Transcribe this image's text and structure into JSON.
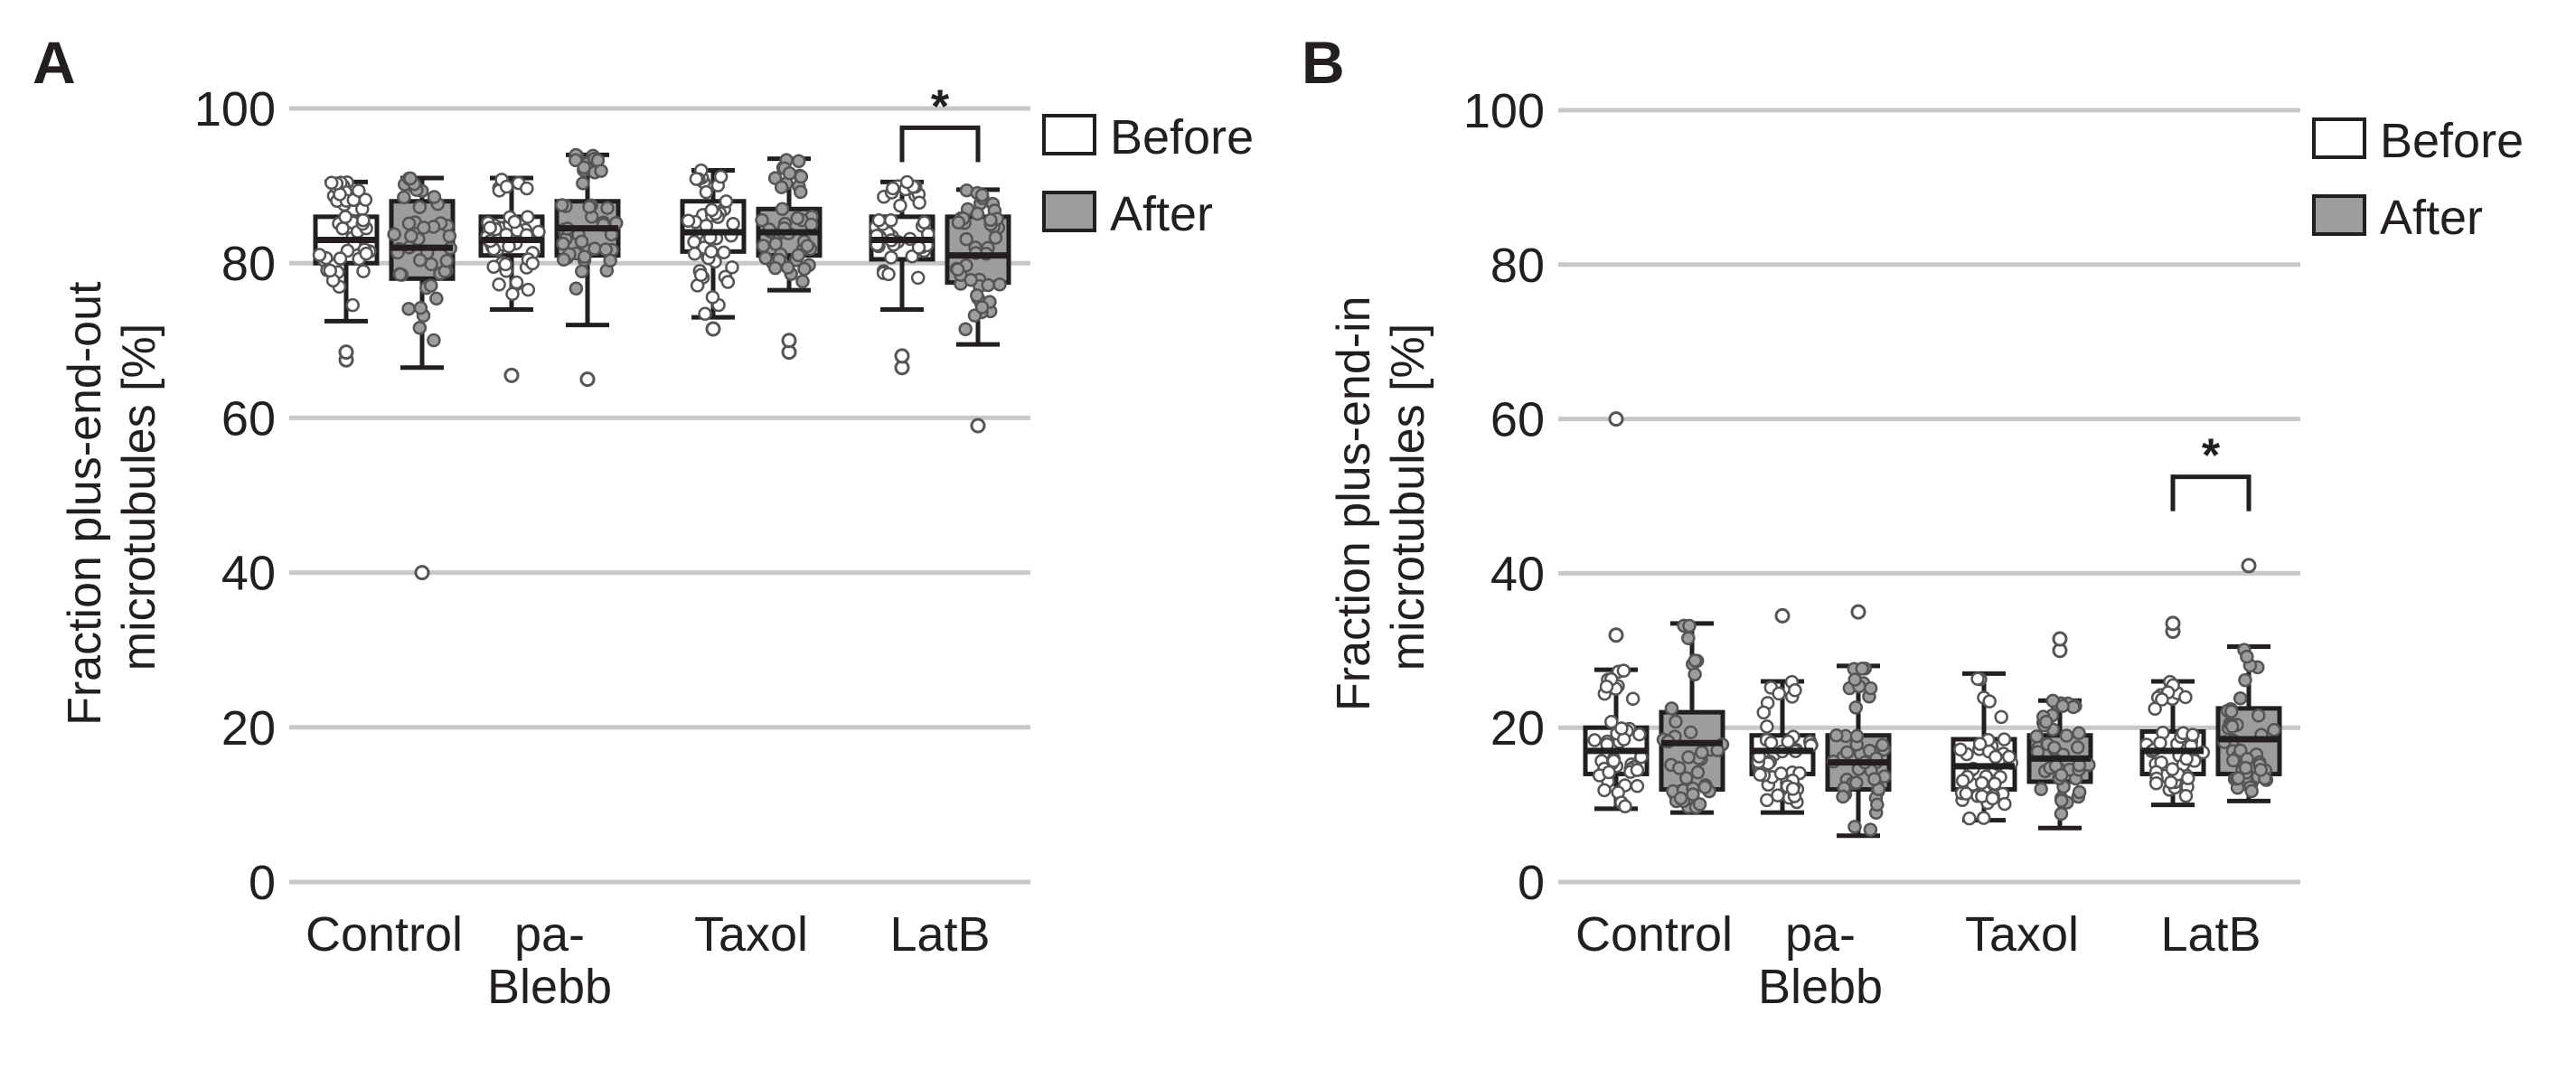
{
  "colors": {
    "grid": "#c8c8c8",
    "box_before": "#ffffff",
    "box_after": "#9d9d9d",
    "dot_before": "#ffffff",
    "dot_after": "#9d9d9d",
    "stroke": "#231f20"
  },
  "legend": {
    "before": "Before",
    "after": "After"
  },
  "chart_data": [
    {
      "panel": "A",
      "type": "box",
      "title": "",
      "ylabel_lines": [
        "Fraction plus-end-out",
        "microtubules [%]"
      ],
      "ylim": [
        0,
        100
      ],
      "yticks": [
        "0",
        "20",
        "40",
        "60",
        "80",
        "100"
      ],
      "grid": true,
      "legend_position": "top-right",
      "groups": [
        {
          "label_lines": [
            "Control"
          ],
          "before": {
            "min": 72.5,
            "q1": 80,
            "median": 83,
            "q3": 86,
            "max": 90.5,
            "outliers": [
              67.5,
              68.5
            ]
          },
          "after": {
            "min": 66.5,
            "q1": 78,
            "median": 82,
            "q3": 88,
            "max": 91,
            "outliers": [
              40
            ]
          }
        },
        {
          "label_lines": [
            "pa-",
            "Blebb"
          ],
          "before": {
            "min": 74,
            "q1": 81,
            "median": 83,
            "q3": 86,
            "max": 91,
            "outliers": [
              65.5
            ]
          },
          "after": {
            "min": 72,
            "q1": 81,
            "median": 84.5,
            "q3": 88,
            "max": 94,
            "outliers": [
              65
            ]
          }
        },
        {
          "label_lines": [
            "Taxol"
          ],
          "before": {
            "min": 73,
            "q1": 81.5,
            "median": 84,
            "q3": 88,
            "max": 92,
            "outliers": [
              71.5
            ]
          },
          "after": {
            "min": 76.5,
            "q1": 81,
            "median": 84,
            "q3": 87,
            "max": 93.5,
            "outliers": [
              68.5,
              70
            ]
          }
        },
        {
          "label_lines": [
            "LatB"
          ],
          "before": {
            "min": 74,
            "q1": 80.5,
            "median": 83,
            "q3": 86,
            "max": 90.5,
            "outliers": [
              66.5,
              68
            ]
          },
          "after": {
            "min": 69.5,
            "q1": 77.5,
            "median": 81,
            "q3": 86,
            "max": 89.5,
            "outliers": [
              59
            ]
          }
        }
      ],
      "significance": {
        "group_index": 3,
        "y": 97.5,
        "label": "*"
      }
    },
    {
      "panel": "B",
      "type": "box",
      "title": "",
      "ylabel_lines": [
        "Fraction plus-end-in",
        "microtubules [%]"
      ],
      "ylim": [
        0,
        100
      ],
      "yticks": [
        "0",
        "20",
        "40",
        "60",
        "80",
        "100"
      ],
      "grid": true,
      "legend_position": "top-right",
      "groups": [
        {
          "label_lines": [
            "Control"
          ],
          "before": {
            "min": 9.5,
            "q1": 14,
            "median": 17,
            "q3": 20,
            "max": 27.5,
            "outliers": [
              32,
              60
            ]
          },
          "after": {
            "min": 9,
            "q1": 12,
            "median": 18,
            "q3": 22,
            "max": 33.5,
            "outliers": []
          }
        },
        {
          "label_lines": [
            "pa-",
            "Blebb"
          ],
          "before": {
            "min": 9,
            "q1": 14,
            "median": 17,
            "q3": 19,
            "max": 26,
            "outliers": [
              34.5
            ]
          },
          "after": {
            "min": 6,
            "q1": 12,
            "median": 15.5,
            "q3": 19,
            "max": 28,
            "outliers": [
              35
            ]
          }
        },
        {
          "label_lines": [
            "Taxol"
          ],
          "before": {
            "min": 8,
            "q1": 12,
            "median": 15,
            "q3": 18.5,
            "max": 27,
            "outliers": []
          },
          "after": {
            "min": 7,
            "q1": 13,
            "median": 16,
            "q3": 19,
            "max": 23.5,
            "outliers": [
              30,
              31.5
            ]
          }
        },
        {
          "label_lines": [
            "LatB"
          ],
          "before": {
            "min": 10,
            "q1": 14,
            "median": 17,
            "q3": 19.5,
            "max": 26,
            "outliers": [
              32.5,
              33.5
            ]
          },
          "after": {
            "min": 10.5,
            "q1": 14,
            "median": 18.5,
            "q3": 22.5,
            "max": 30.5,
            "outliers": [
              41
            ]
          }
        }
      ],
      "significance": {
        "group_index": 3,
        "y": 52.5,
        "label": "*"
      }
    }
  ]
}
